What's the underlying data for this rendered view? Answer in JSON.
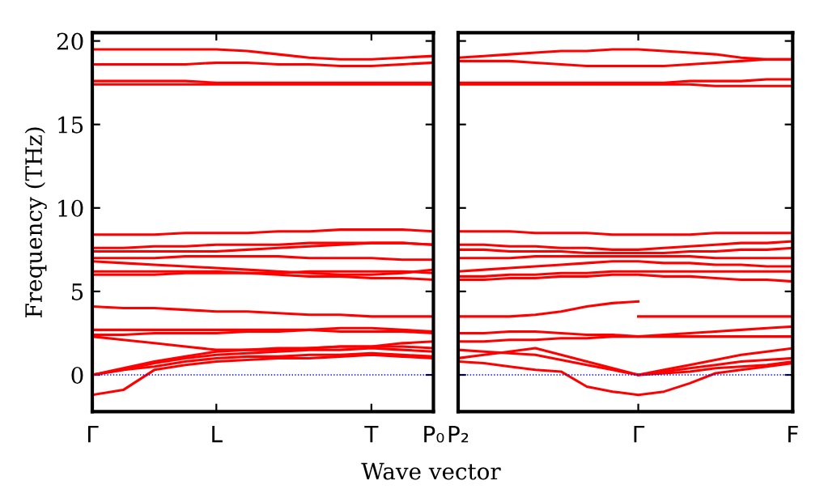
{
  "chart_data": [
    {
      "type": "line",
      "ylabel": "Frequency (THz)",
      "xlabel": "Wave vector",
      "categories": [
        "Γ",
        null,
        null,
        null,
        "L",
        null,
        null,
        null,
        null,
        "T",
        null,
        "P₀"
      ],
      "ylim": [
        -2.2,
        20.5
      ],
      "yticks": [
        0,
        5,
        10,
        15,
        20
      ],
      "ref_lines": [
        {
          "axis": "y",
          "value": 0,
          "color": "#0000ff",
          "line_style": "dotted"
        }
      ],
      "series": [
        {
          "color": "#ff0000",
          "values": [
            19.5,
            19.5,
            19.5,
            19.5,
            19.5,
            19.4,
            19.2,
            19.0,
            18.9,
            18.9,
            19.0,
            19.1
          ]
        },
        {
          "color": "#ff0000",
          "values": [
            18.6,
            18.6,
            18.6,
            18.6,
            18.7,
            18.7,
            18.6,
            18.6,
            18.5,
            18.5,
            18.6,
            18.7
          ]
        },
        {
          "color": "#ff0000",
          "values": [
            17.6,
            17.6,
            17.6,
            17.6,
            17.5,
            17.5,
            17.5,
            17.5,
            17.5,
            17.5,
            17.5,
            17.5
          ]
        },
        {
          "color": "#ff0000",
          "values": [
            17.4,
            17.4,
            17.4,
            17.4,
            17.4,
            17.4,
            17.4,
            17.4,
            17.4,
            17.4,
            17.4,
            17.4
          ]
        },
        {
          "color": "#ff0000",
          "values": [
            8.4,
            8.4,
            8.4,
            8.5,
            8.5,
            8.5,
            8.6,
            8.6,
            8.7,
            8.7,
            8.7,
            8.6
          ]
        },
        {
          "color": "#ff0000",
          "values": [
            7.6,
            7.6,
            7.7,
            7.7,
            7.8,
            7.8,
            7.8,
            7.9,
            7.9,
            7.9,
            7.9,
            7.8
          ]
        },
        {
          "color": "#ff0000",
          "values": [
            7.4,
            7.4,
            7.4,
            7.4,
            7.4,
            7.5,
            7.6,
            7.7,
            7.8,
            7.9,
            7.9,
            7.8
          ]
        },
        {
          "color": "#ff0000",
          "values": [
            7.0,
            7.0,
            7.0,
            7.1,
            7.1,
            7.1,
            7.1,
            7.0,
            7.0,
            7.0,
            6.9,
            6.9
          ]
        },
        {
          "color": "#ff0000",
          "values": [
            6.8,
            6.7,
            6.6,
            6.5,
            6.4,
            6.3,
            6.2,
            6.1,
            6.0,
            6.0,
            6.1,
            6.3
          ]
        },
        {
          "color": "#ff0000",
          "values": [
            6.2,
            6.2,
            6.2,
            6.2,
            6.2,
            6.1,
            6.0,
            5.9,
            5.9,
            5.8,
            5.8,
            5.7
          ]
        },
        {
          "color": "#ff0000",
          "values": [
            6.0,
            6.0,
            6.0,
            6.1,
            6.1,
            6.1,
            6.1,
            6.2,
            6.2,
            6.2,
            6.2,
            6.1
          ]
        },
        {
          "color": "#ff0000",
          "values": [
            4.1,
            4.0,
            4.0,
            3.9,
            3.8,
            3.8,
            3.7,
            3.6,
            3.6,
            3.5,
            3.5,
            3.5
          ]
        },
        {
          "color": "#ff0000",
          "values": [
            2.7,
            2.7,
            2.7,
            2.7,
            2.7,
            2.7,
            2.7,
            2.7,
            2.6,
            2.6,
            2.6,
            2.5
          ]
        },
        {
          "color": "#ff0000",
          "values": [
            2.4,
            2.4,
            2.5,
            2.5,
            2.5,
            2.6,
            2.6,
            2.7,
            2.8,
            2.8,
            2.7,
            2.6
          ]
        },
        {
          "color": "#ff0000",
          "values": [
            2.3,
            2.1,
            1.9,
            1.7,
            1.5,
            1.5,
            1.6,
            1.6,
            1.7,
            1.7,
            1.7,
            1.6
          ]
        },
        {
          "color": "#ff0000",
          "values": [
            0,
            0.4,
            0.8,
            1.1,
            1.4,
            1.5,
            1.5,
            1.6,
            1.7,
            1.7,
            1.9,
            2.0
          ]
        },
        {
          "color": "#ff0000",
          "values": [
            0,
            0.3,
            0.7,
            1.0,
            1.2,
            1.3,
            1.4,
            1.5,
            1.5,
            1.6,
            1.5,
            1.4
          ]
        },
        {
          "color": "#ff0000",
          "values": [
            0,
            0.3,
            0.5,
            0.8,
            1.0,
            1.1,
            1.1,
            1.2,
            1.2,
            1.3,
            1.2,
            1.1
          ]
        },
        {
          "color": "#ff0000",
          "values": [
            -1.2,
            -0.9,
            0.3,
            0.6,
            0.8,
            0.9,
            1.0,
            1.0,
            1.1,
            1.2,
            1.1,
            1.0
          ]
        }
      ]
    },
    {
      "type": "line",
      "tick_labels": "x",
      "categories": [
        "P₂",
        null,
        null,
        null,
        null,
        null,
        null,
        "Γ",
        null,
        null,
        null,
        null,
        null,
        "F"
      ],
      "ylim": [
        -2.2,
        20.5
      ],
      "yticks": [
        0,
        5,
        10,
        15,
        20
      ],
      "ref_lines": [
        {
          "axis": "y",
          "value": 0,
          "color": "#0000ff",
          "line_style": "dotted"
        }
      ],
      "series": [
        {
          "color": "#ff0000",
          "values": [
            19.0,
            19.1,
            19.2,
            19.3,
            19.4,
            19.4,
            19.5,
            19.5,
            19.4,
            19.3,
            19.2,
            19.0,
            18.9,
            18.9
          ]
        },
        {
          "color": "#ff0000",
          "values": [
            18.8,
            18.8,
            18.8,
            18.7,
            18.6,
            18.5,
            18.5,
            18.5,
            18.5,
            18.6,
            18.7,
            18.8,
            18.9,
            18.9
          ]
        },
        {
          "color": "#ff0000",
          "values": [
            17.5,
            17.5,
            17.5,
            17.5,
            17.5,
            17.5,
            17.5,
            17.5,
            17.5,
            17.6,
            17.6,
            17.6,
            17.7,
            17.7
          ]
        },
        {
          "color": "#ff0000",
          "values": [
            17.4,
            17.4,
            17.4,
            17.4,
            17.4,
            17.4,
            17.4,
            17.4,
            17.4,
            17.4,
            17.3,
            17.3,
            17.3,
            17.3
          ]
        },
        {
          "color": "#ff0000",
          "values": [
            8.6,
            8.6,
            8.6,
            8.5,
            8.5,
            8.5,
            8.4,
            8.4,
            8.4,
            8.4,
            8.5,
            8.5,
            8.5,
            8.5
          ]
        },
        {
          "color": "#ff0000",
          "values": [
            7.8,
            7.8,
            7.7,
            7.7,
            7.6,
            7.6,
            7.5,
            7.5,
            7.6,
            7.7,
            7.8,
            7.9,
            7.9,
            8.0
          ]
        },
        {
          "color": "#ff0000",
          "values": [
            7.5,
            7.5,
            7.4,
            7.4,
            7.4,
            7.3,
            7.3,
            7.3,
            7.3,
            7.4,
            7.4,
            7.5,
            7.5,
            7.6
          ]
        },
        {
          "color": "#ff0000",
          "values": [
            7.0,
            7.0,
            7.0,
            7.1,
            7.1,
            7.1,
            7.1,
            7.1,
            7.1,
            7.1,
            7.0,
            7.0,
            7.0,
            7.0
          ]
        },
        {
          "color": "#ff0000",
          "values": [
            6.2,
            6.3,
            6.4,
            6.5,
            6.6,
            6.7,
            6.8,
            6.8,
            6.7,
            6.7,
            6.6,
            6.6,
            6.5,
            6.5
          ]
        },
        {
          "color": "#ff0000",
          "values": [
            5.9,
            5.9,
            6.0,
            6.0,
            6.1,
            6.1,
            6.2,
            6.2,
            6.2,
            6.2,
            6.2,
            6.2,
            6.2,
            6.2
          ]
        },
        {
          "color": "#ff0000",
          "values": [
            5.7,
            5.7,
            5.8,
            5.8,
            5.9,
            5.9,
            6.0,
            6.0,
            5.9,
            5.9,
            5.8,
            5.7,
            5.7,
            5.6
          ]
        },
        {
          "color": "#ff0000",
          "values": [
            3.5,
            3.5,
            3.5,
            3.6,
            3.8,
            4.1,
            4.3,
            4.4,
            null,
            null,
            null,
            null,
            null,
            null
          ]
        },
        {
          "color": "#ff0000",
          "values": [
            null,
            null,
            null,
            null,
            null,
            null,
            null,
            3.5,
            3.5,
            3.5,
            3.5,
            3.5,
            3.5,
            3.5
          ]
        },
        {
          "color": "#ff0000",
          "values": [
            2.5,
            2.5,
            2.6,
            2.6,
            2.5,
            2.4,
            2.4,
            2.3,
            2.3,
            2.3,
            2.3,
            2.3,
            2.3,
            2.3
          ]
        },
        {
          "color": "#ff0000",
          "values": [
            2.0,
            2.0,
            2.1,
            2.1,
            2.2,
            2.2,
            2.3,
            2.3,
            2.4,
            2.5,
            2.6,
            2.7,
            2.8,
            2.9
          ]
        },
        {
          "color": "#ff0000",
          "values": [
            1.0,
            1.2,
            1.4,
            1.6,
            1.2,
            0.8,
            0.4,
            0,
            0.3,
            0.6,
            0.9,
            1.2,
            1.4,
            1.6
          ]
        },
        {
          "color": "#ff0000",
          "values": [
            1.5,
            1.4,
            1.3,
            1.2,
            0.9,
            0.6,
            0.3,
            0,
            0.2,
            0.4,
            0.6,
            0.8,
            0.9,
            1.0
          ]
        },
        {
          "color": "#ff0000",
          "values": [
            0.8,
            0.7,
            0.5,
            0.3,
            0.2,
            -0.7,
            -1.0,
            -1.2,
            -1.0,
            -0.5,
            0.1,
            0.3,
            0.5,
            0.7
          ]
        },
        {
          "color": "#ff0000",
          "values": [
            null,
            null,
            null,
            null,
            null,
            null,
            null,
            0,
            0.1,
            0.2,
            0.4,
            0.5,
            0.6,
            0.8
          ]
        }
      ]
    }
  ]
}
